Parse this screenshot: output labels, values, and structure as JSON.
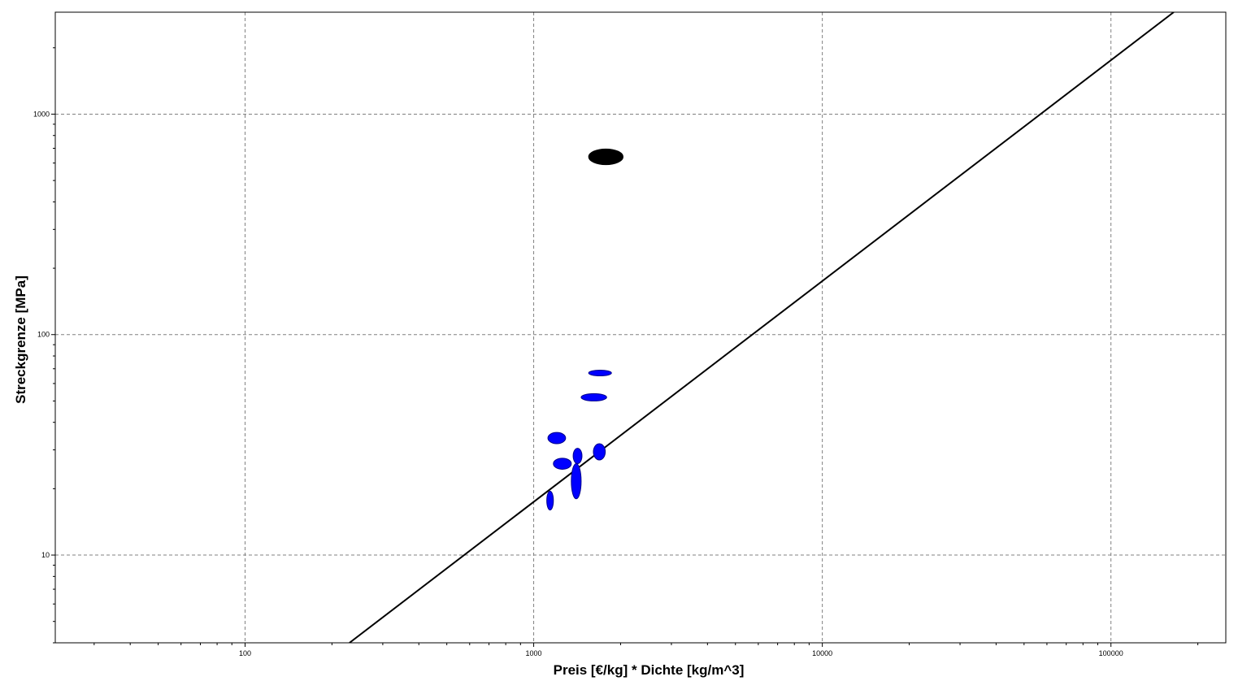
{
  "chart_data": {
    "type": "scatter",
    "title": "",
    "xlabel": "Preis [€/kg] * Dichte [kg/m^3]",
    "ylabel": "Streckgrenze [MPa]",
    "x_scale": "log",
    "y_scale": "log",
    "xlim": [
      22,
      250000
    ],
    "ylim": [
      4,
      2900
    ],
    "x_major_ticks": [
      100,
      1000,
      10000,
      100000
    ],
    "x_tick_labels": [
      "100",
      "1000",
      "10000",
      "100000"
    ],
    "y_major_ticks": [
      10,
      100,
      1000
    ],
    "y_tick_labels": [
      "10",
      "100",
      "1000"
    ],
    "grid": true,
    "grid_style": "dashed",
    "legend": "none",
    "colors": {
      "ellipse_fill": "#0000ff",
      "ellipse_stroke": "#00008b",
      "highlight_fill": "#000000",
      "line": "#000000",
      "grid": "#808080"
    },
    "series": [
      {
        "marker": "ellipse",
        "color": "#0000ff",
        "points": [
          {
            "x": 1700,
            "y": 67,
            "x_range": [
              1550,
              1860
            ],
            "y_range": [
              65,
              69
            ]
          },
          {
            "x": 1620,
            "y": 52,
            "x_range": [
              1460,
              1790
            ],
            "y_range": [
              50,
              54
            ]
          },
          {
            "x": 1200,
            "y": 34,
            "x_range": [
              1120,
              1290
            ],
            "y_range": [
              32,
              36
            ]
          },
          {
            "x": 1260,
            "y": 26,
            "x_range": [
              1170,
              1350
            ],
            "y_range": [
              24.5,
              27.5
            ]
          },
          {
            "x": 1420,
            "y": 28,
            "x_range": [
              1370,
              1470
            ],
            "y_range": [
              26,
              30.5
            ]
          },
          {
            "x": 1690,
            "y": 29.5,
            "x_range": [
              1610,
              1770
            ],
            "y_range": [
              27,
              32
            ]
          },
          {
            "x": 1400,
            "y": 22,
            "x_range": [
              1350,
              1460
            ],
            "y_range": [
              18,
              26
            ]
          },
          {
            "x": 1140,
            "y": 17.5,
            "x_range": [
              1110,
              1170
            ],
            "y_range": [
              16,
              19.5
            ]
          }
        ]
      },
      {
        "marker": "ellipse",
        "color": "#000000",
        "points": [
          {
            "x": 1780,
            "y": 640,
            "x_range": [
              1550,
              2040
            ],
            "y_range": [
              590,
              695
            ]
          }
        ]
      }
    ],
    "line": {
      "points": [
        [
          230,
          4
        ],
        [
          165000,
          2900
        ]
      ]
    }
  }
}
